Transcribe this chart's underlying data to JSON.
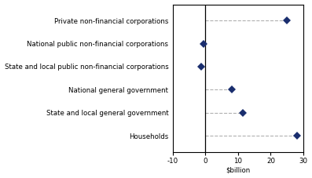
{
  "categories": [
    "Private non-financial corporations",
    "National public non-financial corporations",
    "State and local public non-financial corporations",
    "National general government",
    "State and local general government",
    "Households"
  ],
  "values": [
    25.0,
    -0.5,
    -1.2,
    8.0,
    11.5,
    28.0
  ],
  "marker_color": "#1a2e6e",
  "xlim": [
    -10,
    30
  ],
  "xticks": [
    -10,
    0,
    10,
    20,
    30
  ],
  "xlabel": "$billion",
  "background_color": "#ffffff",
  "grid_color": "#b0b0b0",
  "marker_size": 5,
  "font_size": 6.2
}
